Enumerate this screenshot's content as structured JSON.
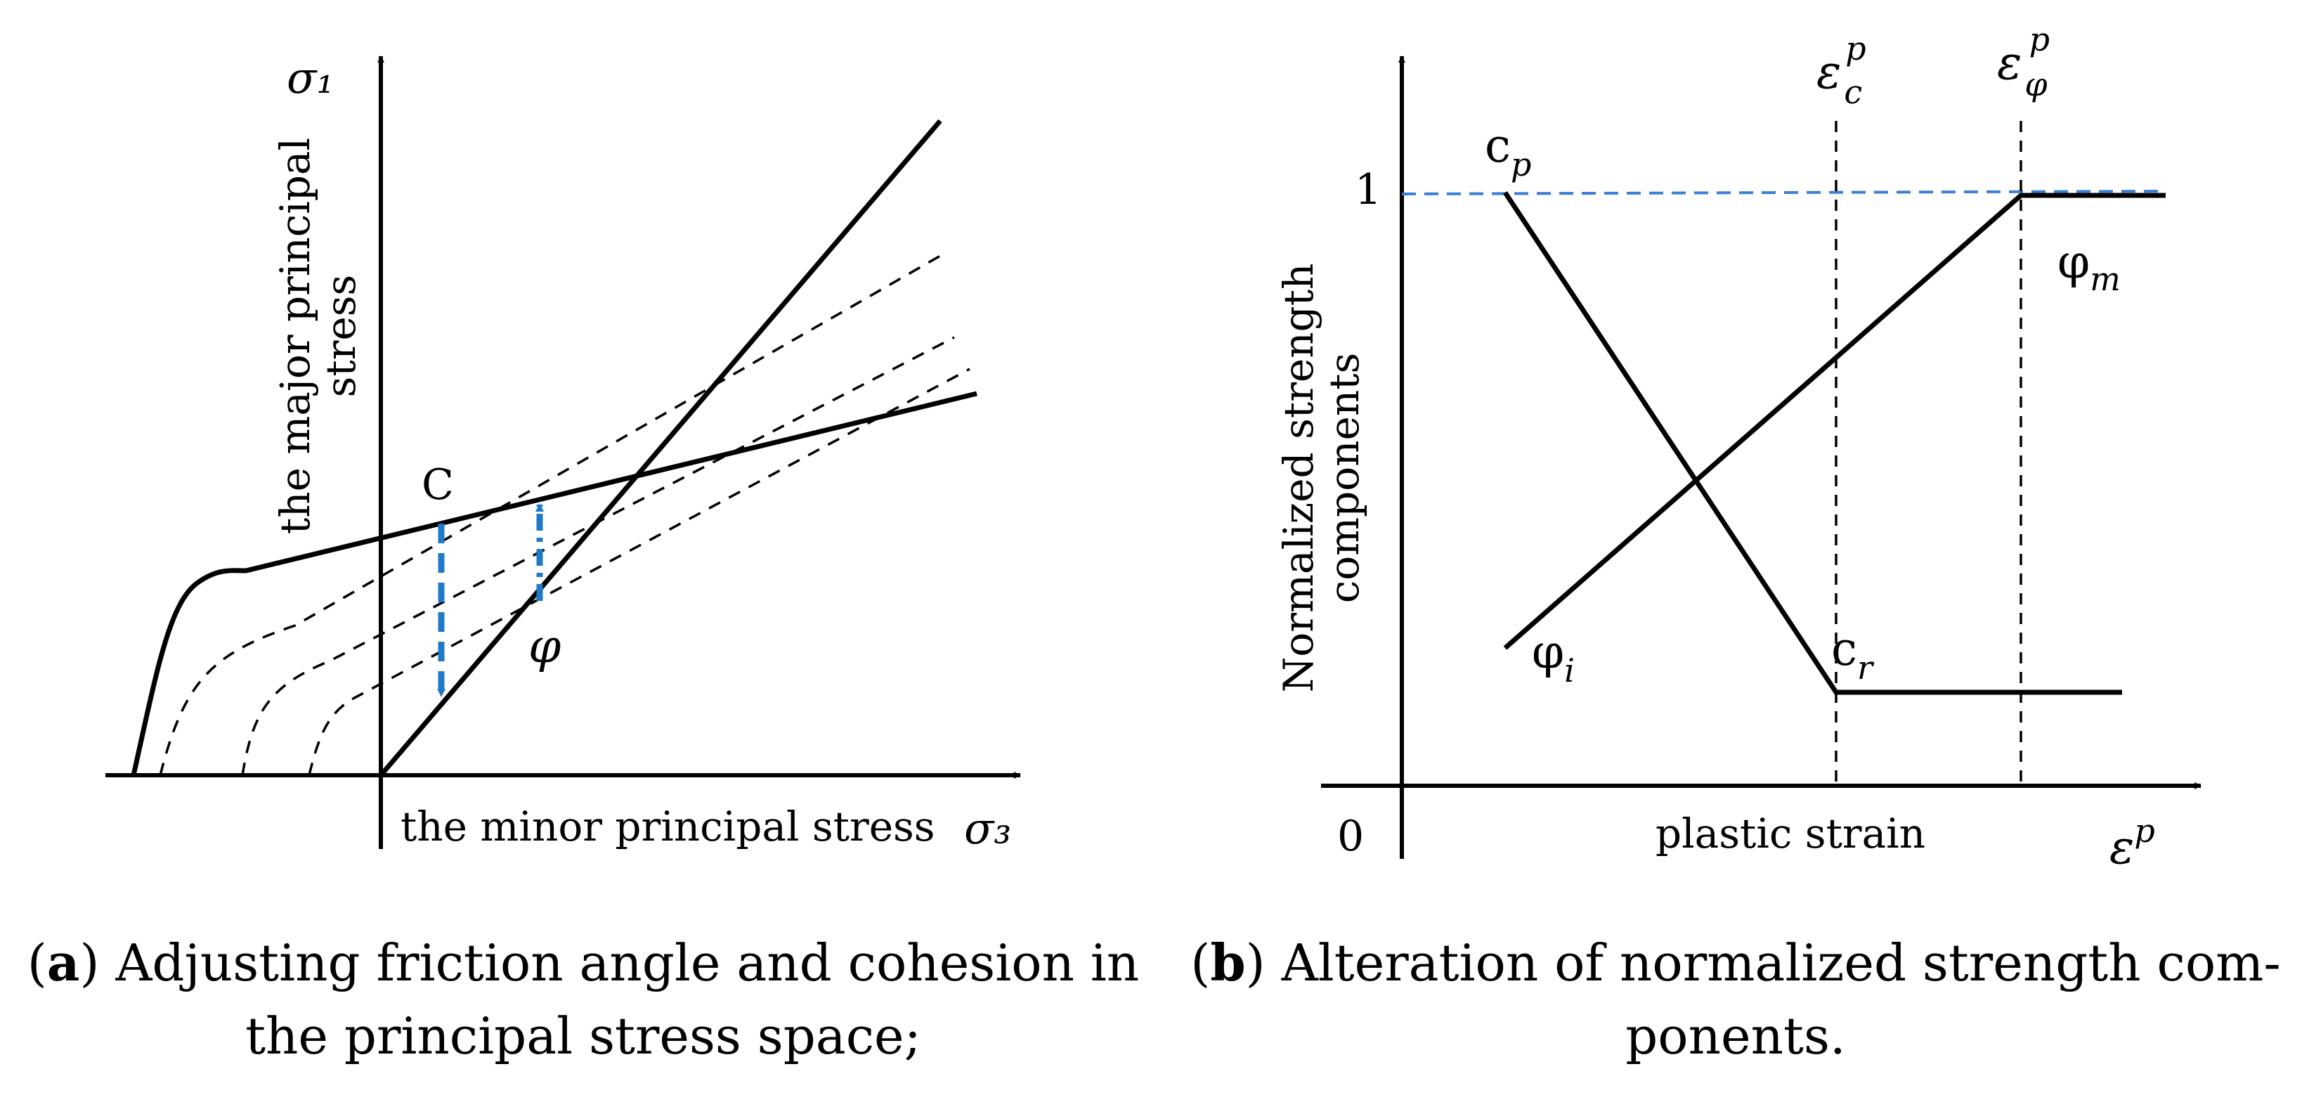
{
  "panel_a": {
    "y_axis_symbol": "σ₁",
    "y_axis_title_line1": "the major principal",
    "y_axis_title_line2": "stress",
    "x_axis_symbol": "σ₃",
    "x_axis_title": "the minor principal stress",
    "label_c": "C",
    "label_phi": "φ",
    "caption_letter": "a",
    "caption_line1": "Adjusting friction angle and cohesion in",
    "caption_line2": "the principal stress space;",
    "arrow_color": "#1f78c8"
  },
  "panel_b": {
    "y_axis_title_line1": "Normalized strength",
    "y_axis_title_line2": "components",
    "x_axis_title": "plastic strain",
    "x_axis_symbol_base": "ε",
    "x_axis_symbol_sup": "p",
    "origin_label": "0",
    "one_label": "1",
    "label_cp_base": "c",
    "label_cp_sub": "p",
    "label_cr_base": "c",
    "label_cr_sub": "r",
    "label_phii_base": "φ",
    "label_phii_sub": "i",
    "label_phim_base": "φ",
    "label_phim_sub": "m",
    "eps_c_base": "ε",
    "eps_c_sub": "c",
    "eps_c_sup": "p",
    "eps_phi_base": "ε",
    "eps_phi_sub": "φ",
    "eps_phi_sup": "p",
    "caption_letter": "b",
    "caption_line1": "Alteration of normalized strength com-",
    "caption_line2": "ponents.",
    "reference_line_color": "#3a7fd5"
  }
}
